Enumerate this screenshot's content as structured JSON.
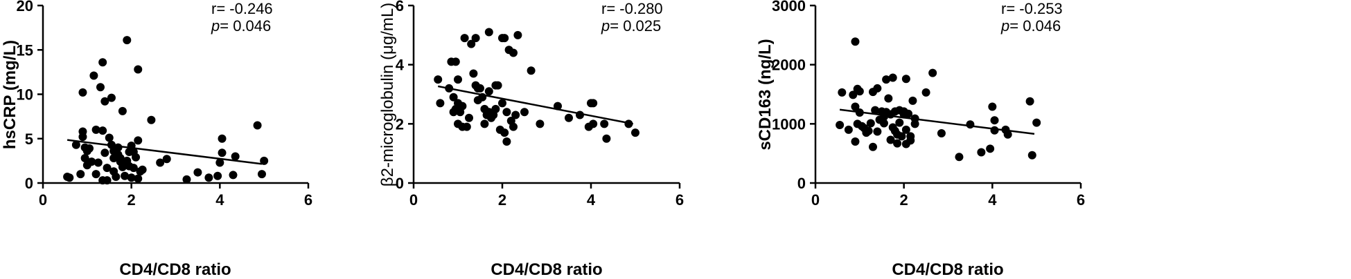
{
  "figure": {
    "colors": {
      "points": "#000000",
      "line": "#000000",
      "axes": "#000000",
      "background": "#ffffff"
    }
  },
  "chart_data": [
    {
      "type": "scatter",
      "title": "",
      "xlabel": "CD4/CD8 ratio",
      "ylabel": "hsCRP (mg/L)",
      "xlim": [
        0,
        6
      ],
      "ylim": [
        0,
        20
      ],
      "xticks": [
        0,
        2,
        4,
        6
      ],
      "yticks": [
        0,
        5,
        10,
        15,
        20
      ],
      "grid": false,
      "annotation": {
        "r_label": "r= -0.246",
        "p_symbol": "p",
        "p_value": "= 0.046"
      },
      "regression": {
        "x": [
          0.55,
          4.95
        ],
        "y": [
          4.85,
          2.15
        ]
      },
      "points": [
        [
          0.55,
          0.7
        ],
        [
          0.6,
          0.6
        ],
        [
          0.75,
          4.3
        ],
        [
          0.85,
          1.0
        ],
        [
          0.9,
          10.2
        ],
        [
          0.9,
          5.8
        ],
        [
          0.9,
          5.2
        ],
        [
          0.95,
          2.8
        ],
        [
          0.95,
          4.0
        ],
        [
          1.0,
          2.0
        ],
        [
          1.0,
          3.6
        ],
        [
          1.05,
          3.9
        ],
        [
          1.1,
          2.4
        ],
        [
          1.15,
          12.1
        ],
        [
          1.2,
          1.0
        ],
        [
          1.2,
          6.0
        ],
        [
          1.25,
          2.3
        ],
        [
          1.3,
          10.8
        ],
        [
          1.35,
          13.6
        ],
        [
          1.35,
          5.9
        ],
        [
          1.35,
          0.3
        ],
        [
          1.4,
          9.2
        ],
        [
          1.4,
          3.4
        ],
        [
          1.45,
          0.3
        ],
        [
          1.45,
          1.7
        ],
        [
          1.5,
          5.1
        ],
        [
          1.55,
          9.6
        ],
        [
          1.55,
          4.3
        ],
        [
          1.6,
          3.6
        ],
        [
          1.6,
          2.8
        ],
        [
          1.6,
          1.3
        ],
        [
          1.65,
          0.7
        ],
        [
          1.7,
          4.0
        ],
        [
          1.7,
          3.2
        ],
        [
          1.75,
          2.8
        ],
        [
          1.75,
          2.4
        ],
        [
          1.8,
          1.8
        ],
        [
          1.8,
          8.1
        ],
        [
          1.85,
          2.1
        ],
        [
          1.85,
          0.8
        ],
        [
          1.9,
          16.1
        ],
        [
          1.9,
          2.5
        ],
        [
          1.95,
          1.9
        ],
        [
          1.95,
          3.5
        ],
        [
          2.0,
          4.2
        ],
        [
          2.0,
          0.6
        ],
        [
          2.05,
          3.5
        ],
        [
          2.05,
          1.7
        ],
        [
          2.1,
          2.9
        ],
        [
          2.15,
          12.8
        ],
        [
          2.15,
          4.8
        ],
        [
          2.15,
          0.5
        ],
        [
          2.2,
          1.3
        ],
        [
          2.25,
          1.5
        ],
        [
          2.45,
          7.1
        ],
        [
          2.65,
          2.3
        ],
        [
          2.8,
          2.7
        ],
        [
          3.25,
          0.4
        ],
        [
          3.5,
          1.2
        ],
        [
          3.75,
          0.6
        ],
        [
          3.95,
          0.8
        ],
        [
          4.0,
          2.3
        ],
        [
          4.05,
          3.4
        ],
        [
          4.05,
          5.0
        ],
        [
          4.3,
          0.9
        ],
        [
          4.35,
          3.0
        ],
        [
          4.85,
          6.5
        ],
        [
          4.95,
          1.0
        ],
        [
          5.0,
          2.5
        ]
      ]
    },
    {
      "type": "scatter",
      "title": "",
      "xlabel": "CD4/CD8 ratio",
      "ylabel": "β2-microglobulin (μg/mL)",
      "xlim": [
        0,
        6
      ],
      "ylim": [
        0,
        6
      ],
      "xticks": [
        0,
        2,
        4,
        6
      ],
      "yticks": [
        0,
        2,
        4,
        6
      ],
      "grid": false,
      "annotation": {
        "r_label": "r= -0.280",
        "p_symbol": "p",
        "p_value": "= 0.025"
      },
      "regression": {
        "x": [
          0.55,
          4.95
        ],
        "y": [
          3.27,
          2.0
        ]
      },
      "points": [
        [
          0.55,
          3.5
        ],
        [
          0.6,
          2.7
        ],
        [
          0.8,
          3.2
        ],
        [
          0.85,
          4.1
        ],
        [
          0.9,
          2.4
        ],
        [
          0.9,
          2.9
        ],
        [
          0.95,
          2.5
        ],
        [
          0.95,
          4.1
        ],
        [
          1.0,
          3.5
        ],
        [
          1.0,
          2.0
        ],
        [
          1.0,
          2.7
        ],
        [
          1.05,
          2.4
        ],
        [
          1.1,
          2.6
        ],
        [
          1.1,
          1.9
        ],
        [
          1.15,
          4.9
        ],
        [
          1.2,
          1.9
        ],
        [
          1.25,
          2.2
        ],
        [
          1.3,
          4.7
        ],
        [
          1.35,
          3.7
        ],
        [
          1.4,
          4.9
        ],
        [
          1.4,
          3.3
        ],
        [
          1.45,
          3.2
        ],
        [
          1.45,
          2.8
        ],
        [
          1.5,
          3.2
        ],
        [
          1.55,
          2.9
        ],
        [
          1.6,
          2.0
        ],
        [
          1.6,
          2.5
        ],
        [
          1.65,
          2.3
        ],
        [
          1.7,
          5.1
        ],
        [
          1.7,
          3.1
        ],
        [
          1.7,
          2.4
        ],
        [
          1.75,
          2.2
        ],
        [
          1.8,
          2.3
        ],
        [
          1.85,
          3.3
        ],
        [
          1.85,
          2.5
        ],
        [
          1.9,
          3.3
        ],
        [
          1.95,
          1.8
        ],
        [
          2.0,
          4.9
        ],
        [
          2.0,
          2.7
        ],
        [
          2.05,
          4.9
        ],
        [
          2.05,
          1.7
        ],
        [
          2.1,
          1.4
        ],
        [
          2.1,
          2.4
        ],
        [
          2.15,
          4.5
        ],
        [
          2.2,
          2.1
        ],
        [
          2.25,
          4.4
        ],
        [
          2.25,
          1.9
        ],
        [
          2.3,
          2.3
        ],
        [
          2.35,
          5.0
        ],
        [
          2.5,
          2.4
        ],
        [
          2.65,
          3.8
        ],
        [
          2.85,
          2.0
        ],
        [
          3.25,
          2.6
        ],
        [
          3.5,
          2.2
        ],
        [
          3.75,
          2.3
        ],
        [
          3.95,
          1.9
        ],
        [
          4.0,
          2.7
        ],
        [
          4.05,
          2.7
        ],
        [
          4.05,
          2.0
        ],
        [
          4.3,
          2.0
        ],
        [
          4.35,
          1.5
        ],
        [
          4.85,
          2.0
        ],
        [
          5.0,
          1.7
        ]
      ]
    },
    {
      "type": "scatter",
      "title": "",
      "xlabel": "CD4/CD8 ratio",
      "ylabel": "sCD163 (ng/L)",
      "xlim": [
        0,
        6
      ],
      "ylim": [
        0,
        3000
      ],
      "xticks": [
        0,
        2,
        4,
        6
      ],
      "yticks": [
        0,
        1000,
        2000,
        3000
      ],
      "grid": false,
      "annotation": {
        "r_label": "r= -0.253",
        "p_symbol": "p",
        "p_value": "= 0.046"
      },
      "regression": {
        "x": [
          0.55,
          4.95
        ],
        "y": [
          1240,
          830
        ]
      },
      "points": [
        [
          0.55,
          980
        ],
        [
          0.6,
          1530
        ],
        [
          0.75,
          900
        ],
        [
          0.85,
          1490
        ],
        [
          0.9,
          700
        ],
        [
          0.9,
          1290
        ],
        [
          0.9,
          2390
        ],
        [
          0.95,
          1000
        ],
        [
          0.95,
          1590
        ],
        [
          1.0,
          1190
        ],
        [
          1.0,
          1550
        ],
        [
          1.05,
          960
        ],
        [
          1.1,
          930
        ],
        [
          1.15,
          850
        ],
        [
          1.2,
          880
        ],
        [
          1.25,
          1010
        ],
        [
          1.3,
          1540
        ],
        [
          1.3,
          610
        ],
        [
          1.35,
          1230
        ],
        [
          1.4,
          1600
        ],
        [
          1.4,
          870
        ],
        [
          1.45,
          1070
        ],
        [
          1.5,
          1210
        ],
        [
          1.55,
          1010
        ],
        [
          1.55,
          1120
        ],
        [
          1.6,
          1750
        ],
        [
          1.6,
          1200
        ],
        [
          1.65,
          1430
        ],
        [
          1.7,
          1160
        ],
        [
          1.7,
          730
        ],
        [
          1.75,
          1780
        ],
        [
          1.75,
          940
        ],
        [
          1.8,
          1210
        ],
        [
          1.8,
          880
        ],
        [
          1.85,
          820
        ],
        [
          1.85,
          670
        ],
        [
          1.9,
          1230
        ],
        [
          1.9,
          1020
        ],
        [
          1.95,
          790
        ],
        [
          2.0,
          1210
        ],
        [
          2.0,
          1160
        ],
        [
          2.05,
          1760
        ],
        [
          2.05,
          900
        ],
        [
          2.05,
          660
        ],
        [
          2.1,
          1170
        ],
        [
          2.15,
          790
        ],
        [
          2.15,
          720
        ],
        [
          2.2,
          1390
        ],
        [
          2.25,
          1000
        ],
        [
          2.25,
          1090
        ],
        [
          2.5,
          1530
        ],
        [
          2.65,
          1860
        ],
        [
          2.85,
          840
        ],
        [
          3.25,
          440
        ],
        [
          3.5,
          990
        ],
        [
          3.75,
          520
        ],
        [
          3.95,
          580
        ],
        [
          4.0,
          1290
        ],
        [
          4.05,
          1060
        ],
        [
          4.05,
          890
        ],
        [
          4.3,
          900
        ],
        [
          4.35,
          820
        ],
        [
          4.85,
          1380
        ],
        [
          4.9,
          470
        ],
        [
          5.0,
          1020
        ]
      ]
    }
  ]
}
